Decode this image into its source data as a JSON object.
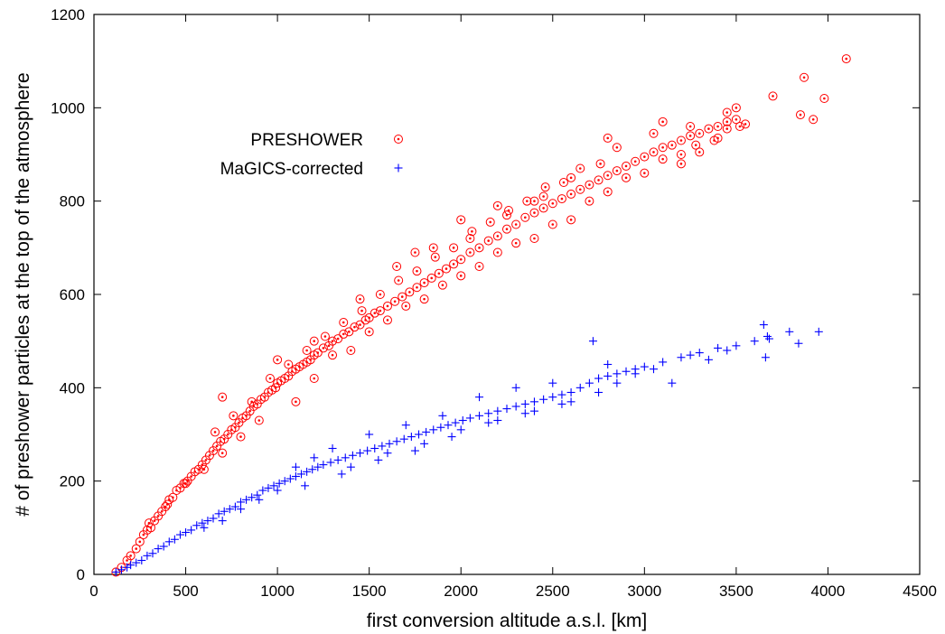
{
  "chart_data": {
    "type": "scatter",
    "title": "",
    "xlabel": "first conversion altitude a.s.l. [km]",
    "ylabel": "# of preshower particles at the top of the atmosphere",
    "xlim": [
      0,
      4500
    ],
    "ylim": [
      0,
      1200
    ],
    "x_ticks": [
      0,
      500,
      1000,
      1500,
      2000,
      2500,
      3000,
      3500,
      4000,
      4500
    ],
    "y_ticks": [
      0,
      200,
      400,
      600,
      800,
      1000,
      1200
    ],
    "grid": false,
    "legend_position": "top-left",
    "series": [
      {
        "name": "PRESHOWER",
        "marker": "circle",
        "color": "#ff0000",
        "points": [
          [
            120,
            5
          ],
          [
            150,
            15
          ],
          [
            180,
            30
          ],
          [
            200,
            40
          ],
          [
            230,
            55
          ],
          [
            250,
            70
          ],
          [
            270,
            85
          ],
          [
            290,
            95
          ],
          [
            310,
            100
          ],
          [
            330,
            115
          ],
          [
            350,
            125
          ],
          [
            370,
            135
          ],
          [
            390,
            145
          ],
          [
            410,
            160
          ],
          [
            430,
            165
          ],
          [
            450,
            180
          ],
          [
            470,
            185
          ],
          [
            490,
            195
          ],
          [
            510,
            200
          ],
          [
            530,
            210
          ],
          [
            550,
            220
          ],
          [
            570,
            225
          ],
          [
            590,
            235
          ],
          [
            610,
            245
          ],
          [
            630,
            255
          ],
          [
            650,
            265
          ],
          [
            670,
            275
          ],
          [
            690,
            285
          ],
          [
            700,
            380
          ],
          [
            710,
            290
          ],
          [
            730,
            300
          ],
          [
            750,
            310
          ],
          [
            770,
            315
          ],
          [
            790,
            325
          ],
          [
            810,
            335
          ],
          [
            830,
            340
          ],
          [
            850,
            350
          ],
          [
            870,
            360
          ],
          [
            890,
            365
          ],
          [
            910,
            375
          ],
          [
            930,
            380
          ],
          [
            950,
            390
          ],
          [
            970,
            395
          ],
          [
            990,
            400
          ],
          [
            1000,
            410
          ],
          [
            1020,
            415
          ],
          [
            1040,
            420
          ],
          [
            1060,
            425
          ],
          [
            1080,
            435
          ],
          [
            1100,
            440
          ],
          [
            1120,
            445
          ],
          [
            1140,
            450
          ],
          [
            1160,
            455
          ],
          [
            1180,
            460
          ],
          [
            1200,
            470
          ],
          [
            1220,
            475
          ],
          [
            1250,
            485
          ],
          [
            1280,
            490
          ],
          [
            1300,
            500
          ],
          [
            1330,
            505
          ],
          [
            1360,
            515
          ],
          [
            1390,
            520
          ],
          [
            1420,
            530
          ],
          [
            1450,
            535
          ],
          [
            1480,
            545
          ],
          [
            1500,
            550
          ],
          [
            1530,
            560
          ],
          [
            1560,
            565
          ],
          [
            1600,
            575
          ],
          [
            1640,
            585
          ],
          [
            1680,
            595
          ],
          [
            1720,
            605
          ],
          [
            1760,
            615
          ],
          [
            1800,
            625
          ],
          [
            1840,
            635
          ],
          [
            1880,
            645
          ],
          [
            1920,
            655
          ],
          [
            1960,
            665
          ],
          [
            2000,
            675
          ],
          [
            2050,
            690
          ],
          [
            2100,
            700
          ],
          [
            2150,
            715
          ],
          [
            2200,
            725
          ],
          [
            2250,
            740
          ],
          [
            2300,
            750
          ],
          [
            2350,
            765
          ],
          [
            2400,
            775
          ],
          [
            2450,
            785
          ],
          [
            2500,
            795
          ],
          [
            2550,
            805
          ],
          [
            2600,
            815
          ],
          [
            2650,
            825
          ],
          [
            2700,
            835
          ],
          [
            2750,
            845
          ],
          [
            2800,
            855
          ],
          [
            2850,
            865
          ],
          [
            2900,
            875
          ],
          [
            2950,
            885
          ],
          [
            3000,
            895
          ],
          [
            3050,
            905
          ],
          [
            3100,
            915
          ],
          [
            3150,
            920
          ],
          [
            3200,
            930
          ],
          [
            3250,
            940
          ],
          [
            3300,
            945
          ],
          [
            3350,
            955
          ],
          [
            3400,
            960
          ],
          [
            3450,
            970
          ],
          [
            3500,
            975
          ],
          [
            3700,
            1025
          ],
          [
            3850,
            985
          ],
          [
            3870,
            1065
          ],
          [
            3920,
            975
          ],
          [
            3980,
            1020
          ],
          [
            4100,
            1105
          ],
          [
            1100,
            370
          ],
          [
            1200,
            420
          ],
          [
            1400,
            480
          ],
          [
            1600,
            545
          ],
          [
            1800,
            590
          ],
          [
            2000,
            640
          ],
          [
            2200,
            690
          ],
          [
            2400,
            720
          ],
          [
            2600,
            760
          ],
          [
            2800,
            820
          ],
          [
            3000,
            860
          ],
          [
            3200,
            900
          ],
          [
            3400,
            935
          ],
          [
            1300,
            470
          ],
          [
            1500,
            520
          ],
          [
            1700,
            575
          ],
          [
            1900,
            620
          ],
          [
            2100,
            660
          ],
          [
            2300,
            710
          ],
          [
            2500,
            750
          ],
          [
            2700,
            800
          ],
          [
            2900,
            850
          ],
          [
            3100,
            890
          ],
          [
            1750,
            690
          ],
          [
            2000,
            760
          ],
          [
            2200,
            790
          ],
          [
            2400,
            800
          ],
          [
            2600,
            850
          ],
          [
            2800,
            935
          ],
          [
            3100,
            970
          ],
          [
            3300,
            905
          ],
          [
            3500,
            1000
          ],
          [
            3550,
            965
          ],
          [
            1000,
            460
          ],
          [
            1200,
            500
          ],
          [
            1450,
            590
          ],
          [
            1650,
            660
          ],
          [
            1850,
            700
          ],
          [
            2050,
            720
          ],
          [
            2250,
            770
          ],
          [
            2450,
            810
          ],
          [
            2650,
            870
          ],
          [
            2850,
            915
          ],
          [
            3050,
            945
          ],
          [
            3250,
            960
          ],
          [
            3450,
            990
          ],
          [
            900,
            330
          ],
          [
            800,
            295
          ],
          [
            700,
            260
          ],
          [
            600,
            225
          ],
          [
            500,
            195
          ],
          [
            400,
            150
          ],
          [
            300,
            110
          ],
          [
            660,
            305
          ],
          [
            760,
            340
          ],
          [
            860,
            370
          ],
          [
            960,
            420
          ],
          [
            1060,
            450
          ],
          [
            1160,
            480
          ],
          [
            1260,
            510
          ],
          [
            1360,
            540
          ],
          [
            1460,
            565
          ],
          [
            1560,
            600
          ],
          [
            1660,
            630
          ],
          [
            1760,
            650
          ],
          [
            1860,
            680
          ],
          [
            1960,
            700
          ],
          [
            2060,
            735
          ],
          [
            2160,
            755
          ],
          [
            2260,
            780
          ],
          [
            2360,
            800
          ],
          [
            2460,
            830
          ],
          [
            2560,
            840
          ],
          [
            2760,
            880
          ],
          [
            3200,
            880
          ],
          [
            3280,
            920
          ],
          [
            3380,
            930
          ],
          [
            3450,
            955
          ],
          [
            3520,
            960
          ]
        ]
      },
      {
        "name": "MaGICS-corrected",
        "marker": "plus",
        "color": "#0000ff",
        "points": [
          [
            120,
            5
          ],
          [
            150,
            10
          ],
          [
            180,
            15
          ],
          [
            200,
            20
          ],
          [
            230,
            25
          ],
          [
            260,
            30
          ],
          [
            290,
            40
          ],
          [
            320,
            45
          ],
          [
            350,
            55
          ],
          [
            380,
            60
          ],
          [
            410,
            70
          ],
          [
            440,
            75
          ],
          [
            470,
            85
          ],
          [
            500,
            90
          ],
          [
            530,
            95
          ],
          [
            560,
            105
          ],
          [
            590,
            110
          ],
          [
            620,
            115
          ],
          [
            650,
            120
          ],
          [
            680,
            130
          ],
          [
            710,
            135
          ],
          [
            740,
            140
          ],
          [
            770,
            145
          ],
          [
            800,
            155
          ],
          [
            830,
            160
          ],
          [
            860,
            165
          ],
          [
            890,
            170
          ],
          [
            920,
            180
          ],
          [
            950,
            185
          ],
          [
            980,
            190
          ],
          [
            1010,
            195
          ],
          [
            1040,
            200
          ],
          [
            1070,
            205
          ],
          [
            1100,
            210
          ],
          [
            1130,
            215
          ],
          [
            1160,
            220
          ],
          [
            1190,
            225
          ],
          [
            1220,
            230
          ],
          [
            1250,
            235
          ],
          [
            1290,
            240
          ],
          [
            1330,
            245
          ],
          [
            1370,
            250
          ],
          [
            1410,
            255
          ],
          [
            1450,
            260
          ],
          [
            1490,
            265
          ],
          [
            1530,
            270
          ],
          [
            1570,
            275
          ],
          [
            1610,
            280
          ],
          [
            1650,
            285
          ],
          [
            1690,
            290
          ],
          [
            1730,
            295
          ],
          [
            1770,
            300
          ],
          [
            1810,
            305
          ],
          [
            1850,
            310
          ],
          [
            1890,
            315
          ],
          [
            1930,
            320
          ],
          [
            1970,
            325
          ],
          [
            2010,
            330
          ],
          [
            2050,
            335
          ],
          [
            2100,
            340
          ],
          [
            2150,
            345
          ],
          [
            2200,
            350
          ],
          [
            2250,
            355
          ],
          [
            2300,
            360
          ],
          [
            2350,
            365
          ],
          [
            2400,
            370
          ],
          [
            2450,
            375
          ],
          [
            2500,
            380
          ],
          [
            2550,
            385
          ],
          [
            2600,
            390
          ],
          [
            2650,
            400
          ],
          [
            2700,
            410
          ],
          [
            2750,
            420
          ],
          [
            2800,
            425
          ],
          [
            2850,
            430
          ],
          [
            2900,
            435
          ],
          [
            2950,
            440
          ],
          [
            3000,
            445
          ],
          [
            3100,
            455
          ],
          [
            3200,
            465
          ],
          [
            3300,
            475
          ],
          [
            3400,
            485
          ],
          [
            3500,
            490
          ],
          [
            3600,
            500
          ],
          [
            3650,
            535
          ],
          [
            3660,
            465
          ],
          [
            3670,
            510
          ],
          [
            3680,
            505
          ],
          [
            3790,
            520
          ],
          [
            3840,
            495
          ],
          [
            3950,
            520
          ],
          [
            2720,
            500
          ],
          [
            2800,
            450
          ],
          [
            2750,
            390
          ],
          [
            2950,
            430
          ],
          [
            3050,
            440
          ],
          [
            3150,
            410
          ],
          [
            3250,
            470
          ],
          [
            1400,
            230
          ],
          [
            1600,
            260
          ],
          [
            1800,
            280
          ],
          [
            2000,
            310
          ],
          [
            2200,
            330
          ],
          [
            2400,
            350
          ],
          [
            2600,
            370
          ],
          [
            1500,
            300
          ],
          [
            1700,
            320
          ],
          [
            1900,
            340
          ],
          [
            2100,
            380
          ],
          [
            2300,
            400
          ],
          [
            2500,
            410
          ],
          [
            900,
            160
          ],
          [
            1000,
            180
          ],
          [
            1100,
            230
          ],
          [
            1200,
            250
          ],
          [
            1300,
            270
          ],
          [
            700,
            115
          ],
          [
            800,
            140
          ],
          [
            600,
            100
          ],
          [
            1150,
            190
          ],
          [
            1350,
            215
          ],
          [
            1550,
            245
          ],
          [
            1750,
            265
          ],
          [
            1950,
            295
          ],
          [
            2150,
            325
          ],
          [
            2350,
            345
          ],
          [
            2550,
            365
          ],
          [
            2850,
            410
          ],
          [
            3350,
            460
          ],
          [
            3450,
            480
          ]
        ]
      }
    ]
  }
}
